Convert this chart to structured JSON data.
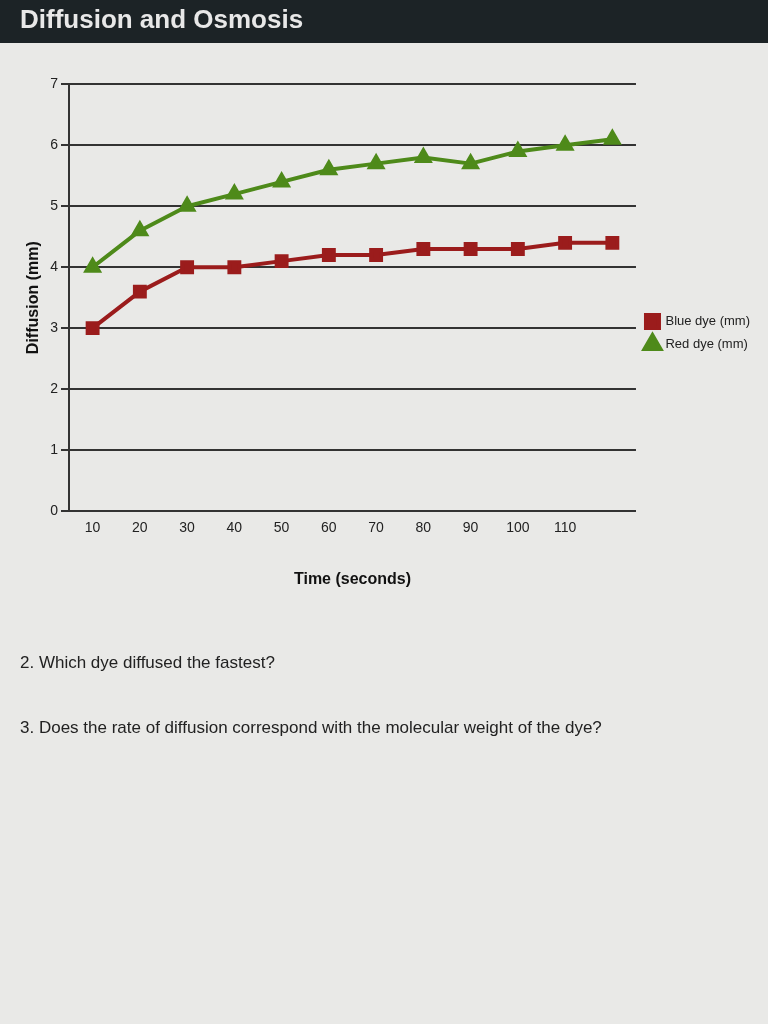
{
  "chart_data": {
    "type": "line",
    "title": "Diffusion and Osmosis",
    "xlabel": "Time (seconds)",
    "ylabel": "Diffusion (mm)",
    "categories": [
      "10",
      "20",
      "30",
      "40",
      "50",
      "60",
      "70",
      "80",
      "90",
      "100",
      "110",
      null
    ],
    "series": [
      {
        "name": "Blue dye (mm)",
        "color": "#9b1c1c",
        "marker": "square",
        "values": [
          3.0,
          3.6,
          4.0,
          4.0,
          4.1,
          4.2,
          4.2,
          4.3,
          4.3,
          4.3,
          4.4,
          4.4
        ]
      },
      {
        "name": "Red dye (mm)",
        "color": "#4e8a1a",
        "marker": "triangle",
        "values": [
          4.0,
          4.6,
          5.0,
          5.2,
          5.4,
          5.6,
          5.7,
          5.8,
          5.7,
          5.9,
          6.0,
          6.1
        ]
      }
    ],
    "ylim": [
      0,
      7
    ],
    "yticks": [
      0,
      1,
      2,
      3,
      4,
      5,
      6,
      7
    ],
    "grid": "y",
    "legend": "right",
    "annotations": [
      "2.  Which dye diffused the fastest?",
      "3.  Does the rate of diffusion correspond with the molecular weight of the dye?"
    ]
  }
}
